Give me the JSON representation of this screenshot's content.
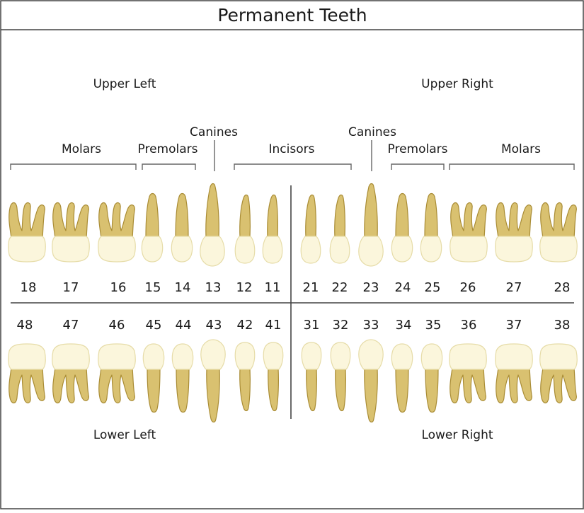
{
  "title": "Permanent Teeth",
  "quadrants": {
    "upper_left": "Upper Left",
    "upper_right": "Upper Right",
    "lower_left": "Lower Left",
    "lower_right": "Lower Right"
  },
  "groups": {
    "molars": "Molars",
    "premolars": "Premolars",
    "canines": "Canines",
    "incisors": "Incisors"
  },
  "colors": {
    "root": "#d9c170",
    "root_dark": "#a98c35",
    "crown": "#fbf6dc",
    "crown_edge": "#e6dca8",
    "line": "#555555"
  },
  "upper_teeth": [
    {
      "number": "18",
      "type": "molar"
    },
    {
      "number": "17",
      "type": "molar"
    },
    {
      "number": "16",
      "type": "molar"
    },
    {
      "number": "15",
      "type": "premolar"
    },
    {
      "number": "14",
      "type": "premolar"
    },
    {
      "number": "13",
      "type": "canine"
    },
    {
      "number": "12",
      "type": "incisor"
    },
    {
      "number": "11",
      "type": "incisor"
    },
    {
      "number": "21",
      "type": "incisor"
    },
    {
      "number": "22",
      "type": "incisor"
    },
    {
      "number": "23",
      "type": "canine"
    },
    {
      "number": "24",
      "type": "premolar"
    },
    {
      "number": "25",
      "type": "premolar"
    },
    {
      "number": "26",
      "type": "molar"
    },
    {
      "number": "27",
      "type": "molar"
    },
    {
      "number": "28",
      "type": "molar"
    }
  ],
  "lower_teeth": [
    {
      "number": "48",
      "type": "molar"
    },
    {
      "number": "47",
      "type": "molar"
    },
    {
      "number": "46",
      "type": "molar"
    },
    {
      "number": "45",
      "type": "premolar"
    },
    {
      "number": "44",
      "type": "premolar"
    },
    {
      "number": "43",
      "type": "canine"
    },
    {
      "number": "42",
      "type": "incisor"
    },
    {
      "number": "41",
      "type": "incisor"
    },
    {
      "number": "31",
      "type": "incisor"
    },
    {
      "number": "32",
      "type": "incisor"
    },
    {
      "number": "33",
      "type": "canine"
    },
    {
      "number": "34",
      "type": "premolar"
    },
    {
      "number": "35",
      "type": "premolar"
    },
    {
      "number": "36",
      "type": "molar"
    },
    {
      "number": "37",
      "type": "molar"
    },
    {
      "number": "38",
      "type": "molar"
    }
  ]
}
